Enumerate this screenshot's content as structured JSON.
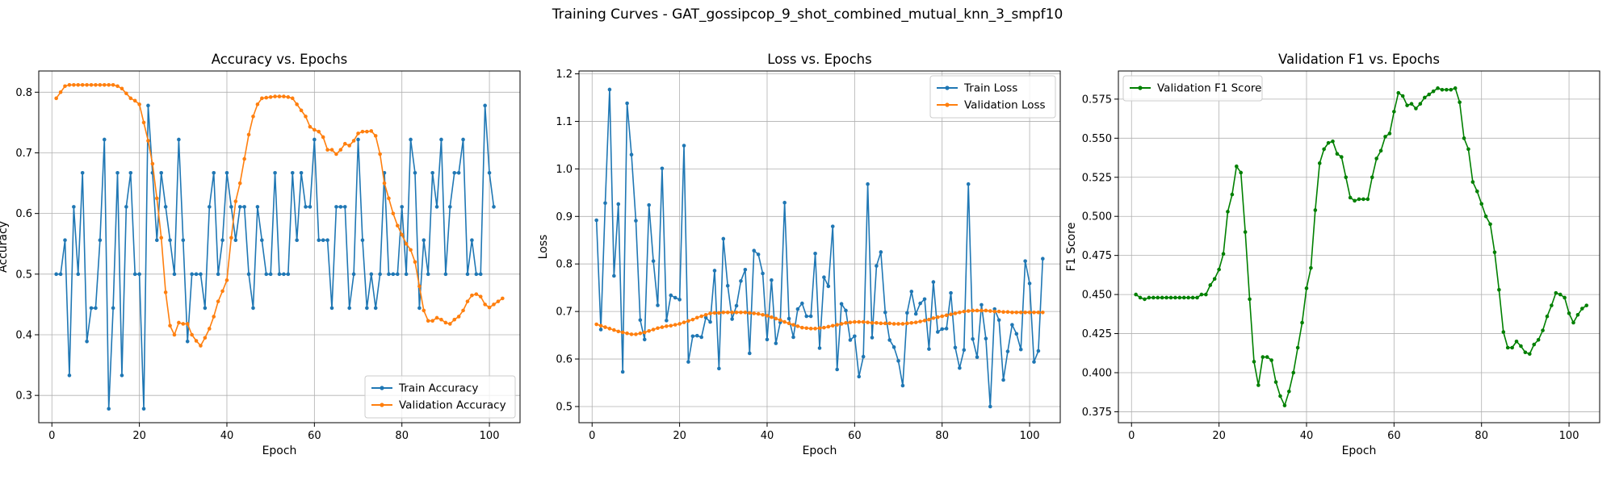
{
  "figure": {
    "title": "Training Curves - GAT_gossipcop_9_shot_combined_mutual_knn_3_smpf10"
  },
  "colors": {
    "train": "#1f77b4",
    "validation": "#ff7f0e",
    "f1": "#008000",
    "grid": "#b0b0b0"
  },
  "chart_data": [
    {
      "type": "line",
      "title": "Accuracy vs. Epochs",
      "xlabel": "Epoch",
      "ylabel": "Accuracy",
      "xlim": [
        -3,
        107
      ],
      "ylim": [
        0.255,
        0.835
      ],
      "xticks": [
        0,
        20,
        40,
        60,
        80,
        100
      ],
      "yticks": [
        0.3,
        0.4,
        0.5,
        0.6,
        0.7,
        0.8
      ],
      "ytick_labels": [
        "0.3",
        "0.4",
        "0.5",
        "0.6",
        "0.7",
        "0.8"
      ],
      "grid": true,
      "legend_position": "lower-right",
      "series": [
        {
          "name": "Train Accuracy",
          "color": "#1f77b4",
          "values": [
            0.5,
            0.5,
            0.556,
            0.333,
            0.611,
            0.5,
            0.667,
            0.389,
            0.444,
            0.444,
            0.556,
            0.722,
            0.278,
            0.444,
            0.667,
            0.333,
            0.611,
            0.667,
            0.5,
            0.5,
            0.278,
            0.778,
            0.667,
            0.556,
            0.667,
            0.611,
            0.556,
            0.5,
            0.722,
            0.556,
            0.389,
            0.5,
            0.5,
            0.5,
            0.444,
            0.611,
            0.667,
            0.5,
            0.556,
            0.667,
            0.611,
            0.556,
            0.611,
            0.611,
            0.5,
            0.444,
            0.611,
            0.556,
            0.5,
            0.5,
            0.667,
            0.5,
            0.5,
            0.5,
            0.667,
            0.556,
            0.667,
            0.611,
            0.611,
            0.722,
            0.556,
            0.556,
            0.556,
            0.444,
            0.611,
            0.611,
            0.611,
            0.444,
            0.5,
            0.722,
            0.556,
            0.444,
            0.5,
            0.444,
            0.5,
            0.667,
            0.5,
            0.5,
            0.5,
            0.611,
            0.5,
            0.722,
            0.667,
            0.444,
            0.556,
            0.5,
            0.667,
            0.611,
            0.722,
            0.5,
            0.611,
            0.667,
            0.667,
            0.722,
            0.5,
            0.556,
            0.5,
            0.5,
            0.778,
            0.667,
            0.611
          ]
        },
        {
          "name": "Validation Accuracy",
          "color": "#ff7f0e",
          "values": [
            0.79,
            0.8,
            0.81,
            0.812,
            0.812,
            0.812,
            0.812,
            0.812,
            0.812,
            0.812,
            0.812,
            0.812,
            0.812,
            0.812,
            0.81,
            0.806,
            0.798,
            0.79,
            0.786,
            0.78,
            0.75,
            0.72,
            0.682,
            0.625,
            0.56,
            0.47,
            0.415,
            0.4,
            0.42,
            0.418,
            0.418,
            0.4,
            0.39,
            0.382,
            0.395,
            0.41,
            0.43,
            0.455,
            0.472,
            0.49,
            0.56,
            0.62,
            0.65,
            0.69,
            0.73,
            0.76,
            0.78,
            0.79,
            0.791,
            0.792,
            0.793,
            0.793,
            0.793,
            0.792,
            0.79,
            0.78,
            0.77,
            0.76,
            0.743,
            0.738,
            0.735,
            0.726,
            0.705,
            0.705,
            0.698,
            0.705,
            0.715,
            0.712,
            0.72,
            0.732,
            0.735,
            0.735,
            0.736,
            0.728,
            0.698,
            0.65,
            0.625,
            0.6,
            0.58,
            0.565,
            0.55,
            0.54,
            0.52,
            0.48,
            0.44,
            0.423,
            0.423,
            0.428,
            0.425,
            0.42,
            0.418,
            0.425,
            0.43,
            0.44,
            0.455,
            0.465,
            0.467,
            0.463,
            0.45,
            0.445,
            0.45,
            0.455,
            0.46
          ]
        }
      ]
    },
    {
      "type": "line",
      "title": "Loss vs. Epochs",
      "xlabel": "Epoch",
      "ylabel": "Loss",
      "xlim": [
        -3,
        107
      ],
      "ylim": [
        0.466,
        1.206
      ],
      "xticks": [
        0,
        20,
        40,
        60,
        80,
        100
      ],
      "yticks": [
        0.5,
        0.6,
        0.7,
        0.8,
        0.9,
        1.0,
        1.1,
        1.2
      ],
      "ytick_labels": [
        "0.5",
        "0.6",
        "0.7",
        "0.8",
        "0.9",
        "1.0",
        "1.1",
        "1.2"
      ],
      "grid": true,
      "legend_position": "upper-right",
      "series": [
        {
          "name": "Train Loss",
          "color": "#1f77b4",
          "values": [
            0.892,
            0.662,
            0.928,
            1.167,
            0.775,
            0.926,
            0.573,
            1.138,
            1.03,
            0.891,
            0.682,
            0.641,
            0.924,
            0.806,
            0.713,
            1.001,
            0.681,
            0.734,
            0.729,
            0.725,
            1.049,
            0.594,
            0.648,
            0.649,
            0.646,
            0.687,
            0.678,
            0.786,
            0.58,
            0.853,
            0.754,
            0.684,
            0.712,
            0.764,
            0.788,
            0.612,
            0.828,
            0.82,
            0.78,
            0.641,
            0.766,
            0.633,
            0.677,
            0.929,
            0.685,
            0.646,
            0.705,
            0.717,
            0.69,
            0.69,
            0.822,
            0.623,
            0.772,
            0.753,
            0.879,
            0.578,
            0.716,
            0.702,
            0.64,
            0.648,
            0.563,
            0.605,
            0.968,
            0.645,
            0.796,
            0.825,
            0.698,
            0.64,
            0.625,
            0.596,
            0.544,
            0.697,
            0.742,
            0.695,
            0.717,
            0.726,
            0.621,
            0.762,
            0.657,
            0.663,
            0.664,
            0.739,
            0.624,
            0.581,
            0.619,
            0.968,
            0.642,
            0.604,
            0.714,
            0.643,
            0.5,
            0.705,
            0.682,
            0.556,
            0.616,
            0.672,
            0.653,
            0.62,
            0.806,
            0.759,
            0.594,
            0.617,
            0.811
          ]
        },
        {
          "name": "Validation Loss",
          "color": "#ff7f0e",
          "values": [
            0.673,
            0.67,
            0.667,
            0.664,
            0.661,
            0.658,
            0.656,
            0.654,
            0.652,
            0.652,
            0.654,
            0.656,
            0.659,
            0.662,
            0.665,
            0.667,
            0.669,
            0.67,
            0.672,
            0.674,
            0.677,
            0.68,
            0.683,
            0.687,
            0.69,
            0.693,
            0.696,
            0.697,
            0.697,
            0.698,
            0.698,
            0.698,
            0.698,
            0.698,
            0.698,
            0.697,
            0.696,
            0.695,
            0.693,
            0.691,
            0.688,
            0.685,
            0.682,
            0.678,
            0.675,
            0.672,
            0.669,
            0.666,
            0.665,
            0.664,
            0.664,
            0.665,
            0.666,
            0.668,
            0.67,
            0.672,
            0.674,
            0.676,
            0.677,
            0.678,
            0.678,
            0.678,
            0.677,
            0.676,
            0.676,
            0.675,
            0.675,
            0.675,
            0.674,
            0.674,
            0.674,
            0.675,
            0.676,
            0.677,
            0.679,
            0.681,
            0.683,
            0.686,
            0.688,
            0.69,
            0.692,
            0.694,
            0.696,
            0.698,
            0.7,
            0.701,
            0.702,
            0.702,
            0.702,
            0.702,
            0.701,
            0.7,
            0.7,
            0.699,
            0.699,
            0.698,
            0.698,
            0.698,
            0.698,
            0.698,
            0.698,
            0.698,
            0.698
          ]
        }
      ]
    },
    {
      "type": "line",
      "title": "Validation F1 vs. Epochs",
      "xlabel": "Epoch",
      "ylabel": "F1 Score",
      "xlim": [
        -3,
        107
      ],
      "ylim": [
        0.368,
        0.593
      ],
      "xticks": [
        0,
        20,
        40,
        60,
        80,
        100
      ],
      "yticks": [
        0.375,
        0.4,
        0.425,
        0.45,
        0.475,
        0.5,
        0.525,
        0.55,
        0.575
      ],
      "ytick_labels": [
        "0.375",
        "0.400",
        "0.425",
        "0.450",
        "0.475",
        "0.500",
        "0.525",
        "0.550",
        "0.575"
      ],
      "grid": true,
      "legend_position": "upper-left",
      "series": [
        {
          "name": "Validation F1 Score",
          "color": "#008000",
          "values": [
            0.45,
            0.448,
            0.447,
            0.448,
            0.448,
            0.448,
            0.448,
            0.448,
            0.448,
            0.448,
            0.448,
            0.448,
            0.448,
            0.448,
            0.448,
            0.45,
            0.45,
            0.456,
            0.46,
            0.466,
            0.476,
            0.503,
            0.514,
            0.532,
            0.528,
            0.49,
            0.447,
            0.407,
            0.392,
            0.41,
            0.41,
            0.408,
            0.394,
            0.385,
            0.379,
            0.388,
            0.4,
            0.416,
            0.432,
            0.454,
            0.467,
            0.504,
            0.534,
            0.543,
            0.547,
            0.548,
            0.54,
            0.538,
            0.525,
            0.512,
            0.51,
            0.511,
            0.511,
            0.511,
            0.525,
            0.537,
            0.542,
            0.551,
            0.553,
            0.567,
            0.579,
            0.577,
            0.571,
            0.572,
            0.569,
            0.572,
            0.576,
            0.578,
            0.58,
            0.582,
            0.581,
            0.581,
            0.581,
            0.582,
            0.573,
            0.55,
            0.543,
            0.522,
            0.516,
            0.508,
            0.5,
            0.495,
            0.477,
            0.453,
            0.426,
            0.416,
            0.416,
            0.42,
            0.417,
            0.413,
            0.412,
            0.418,
            0.421,
            0.427,
            0.436,
            0.443,
            0.451,
            0.45,
            0.448,
            0.438,
            0.432,
            0.437,
            0.441,
            0.443
          ]
        }
      ]
    }
  ]
}
